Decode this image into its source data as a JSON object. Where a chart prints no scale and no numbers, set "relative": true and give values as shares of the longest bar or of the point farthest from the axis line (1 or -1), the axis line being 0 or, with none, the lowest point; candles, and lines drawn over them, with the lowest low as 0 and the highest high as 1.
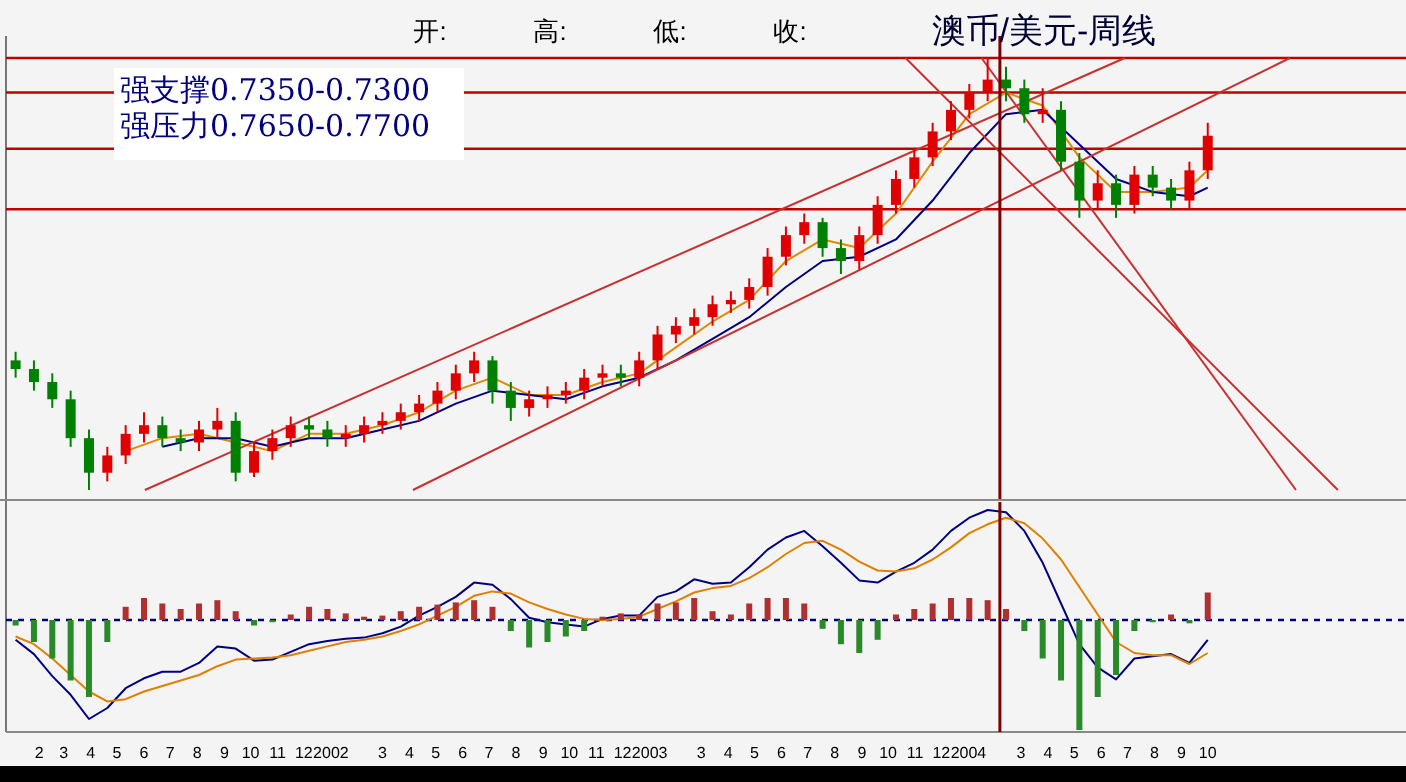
{
  "chart_data": [
    {
      "type": "candlestick",
      "title": "澳币/美元-周线",
      "relative": true,
      "annotations": [
        "开:",
        "高:",
        "低:",
        "收:",
        "强支撑0.7350-0.7300",
        "强压力0.7650-0.7700"
      ],
      "xlim": [
        "2000-12-25",
        "2005-05-16"
      ],
      "tick_labels": false,
      "x": [
        "2001-01-05",
        "2001-01-26",
        "2001-02-16",
        "2001-03-09",
        "2001-03-30",
        "2001-04-20",
        "2001-05-11",
        "2001-06-01",
        "2001-06-22",
        "2001-07-13",
        "2001-08-03",
        "2001-08-24",
        "2001-09-14",
        "2001-10-05",
        "2001-10-26",
        "2001-11-16",
        "2001-12-07",
        "2001-12-28",
        "2002-01-18",
        "2002-02-08",
        "2002-03-01",
        "2002-03-22",
        "2002-04-12",
        "2002-05-03",
        "2002-05-24",
        "2002-06-14",
        "2002-07-05",
        "2002-07-26",
        "2002-08-16",
        "2002-09-06",
        "2002-09-27",
        "2002-10-18",
        "2002-11-08",
        "2002-11-29",
        "2002-12-20",
        "2003-01-10",
        "2003-01-31",
        "2003-02-21",
        "2003-03-14",
        "2003-04-04",
        "2003-04-25",
        "2003-05-16",
        "2003-06-06",
        "2003-06-27",
        "2003-07-18",
        "2003-08-08",
        "2003-08-29",
        "2003-09-19",
        "2003-10-10",
        "2003-10-31",
        "2003-11-21",
        "2003-12-12",
        "2004-01-02",
        "2004-01-23",
        "2004-02-13",
        "2004-03-05",
        "2004-03-26",
        "2004-04-16",
        "2004-05-07",
        "2004-05-28",
        "2004-06-18",
        "2004-07-09",
        "2004-07-30",
        "2004-08-20",
        "2004-09-10",
        "2004-10-01"
      ],
      "ohlc": [
        [
          0.3,
          0.32,
          0.26,
          0.28
        ],
        [
          0.28,
          0.3,
          0.23,
          0.25
        ],
        [
          0.25,
          0.27,
          0.19,
          0.21
        ],
        [
          0.21,
          0.23,
          0.1,
          0.12
        ],
        [
          0.12,
          0.14,
          0,
          0.04
        ],
        [
          0.04,
          0.1,
          0.02,
          0.08
        ],
        [
          0.08,
          0.15,
          0.06,
          0.13
        ],
        [
          0.13,
          0.18,
          0.11,
          0.15
        ],
        [
          0.15,
          0.17,
          0.1,
          0.12
        ],
        [
          0.12,
          0.14,
          0.09,
          0.11
        ],
        [
          0.11,
          0.16,
          0.09,
          0.14
        ],
        [
          0.14,
          0.19,
          0.12,
          0.16
        ],
        [
          0.16,
          0.18,
          0.02,
          0.04
        ],
        [
          0.04,
          0.11,
          0.03,
          0.09
        ],
        [
          0.09,
          0.14,
          0.07,
          0.12
        ],
        [
          0.12,
          0.17,
          0.1,
          0.15
        ],
        [
          0.15,
          0.17,
          0.12,
          0.14
        ],
        [
          0.14,
          0.16,
          0.1,
          0.12
        ],
        [
          0.12,
          0.15,
          0.1,
          0.13
        ],
        [
          0.13,
          0.17,
          0.11,
          0.15
        ],
        [
          0.15,
          0.18,
          0.13,
          0.16
        ],
        [
          0.16,
          0.2,
          0.14,
          0.18
        ],
        [
          0.18,
          0.22,
          0.16,
          0.2
        ],
        [
          0.2,
          0.25,
          0.18,
          0.23
        ],
        [
          0.23,
          0.29,
          0.21,
          0.27
        ],
        [
          0.27,
          0.32,
          0.25,
          0.3
        ],
        [
          0.3,
          0.31,
          0.2,
          0.23
        ],
        [
          0.23,
          0.25,
          0.16,
          0.19
        ],
        [
          0.19,
          0.23,
          0.17,
          0.21
        ],
        [
          0.21,
          0.24,
          0.19,
          0.22
        ],
        [
          0.22,
          0.25,
          0.2,
          0.23
        ],
        [
          0.23,
          0.28,
          0.21,
          0.26
        ],
        [
          0.26,
          0.29,
          0.24,
          0.27
        ],
        [
          0.27,
          0.29,
          0.24,
          0.26
        ],
        [
          0.26,
          0.32,
          0.24,
          0.3
        ],
        [
          0.3,
          0.38,
          0.28,
          0.36
        ],
        [
          0.36,
          0.4,
          0.34,
          0.38
        ],
        [
          0.38,
          0.42,
          0.36,
          0.4
        ],
        [
          0.4,
          0.45,
          0.38,
          0.43
        ],
        [
          0.43,
          0.46,
          0.41,
          0.44
        ],
        [
          0.44,
          0.49,
          0.42,
          0.47
        ],
        [
          0.47,
          0.56,
          0.45,
          0.54
        ],
        [
          0.54,
          0.61,
          0.52,
          0.59
        ],
        [
          0.59,
          0.64,
          0.57,
          0.62
        ],
        [
          0.62,
          0.63,
          0.54,
          0.56
        ],
        [
          0.56,
          0.58,
          0.5,
          0.53
        ],
        [
          0.53,
          0.61,
          0.51,
          0.59
        ],
        [
          0.59,
          0.68,
          0.57,
          0.66
        ],
        [
          0.66,
          0.74,
          0.64,
          0.72
        ],
        [
          0.72,
          0.79,
          0.7,
          0.77
        ],
        [
          0.77,
          0.85,
          0.75,
          0.83
        ],
        [
          0.83,
          0.9,
          0.81,
          0.88
        ],
        [
          0.88,
          0.94,
          0.86,
          0.92
        ],
        [
          0.92,
          1.0,
          0.9,
          0.95
        ],
        [
          0.95,
          0.98,
          0.9,
          0.93
        ],
        [
          0.93,
          0.95,
          0.85,
          0.87
        ],
        [
          0.87,
          0.93,
          0.85,
          0.88
        ],
        [
          0.88,
          0.9,
          0.74,
          0.76
        ],
        [
          0.76,
          0.78,
          0.63,
          0.67
        ],
        [
          0.67,
          0.74,
          0.65,
          0.71
        ],
        [
          0.71,
          0.73,
          0.63,
          0.66
        ],
        [
          0.66,
          0.75,
          0.64,
          0.73
        ],
        [
          0.73,
          0.75,
          0.68,
          0.7
        ],
        [
          0.7,
          0.72,
          0.65,
          0.67
        ],
        [
          0.67,
          0.76,
          0.65,
          0.74
        ],
        [
          0.74,
          0.85,
          0.72,
          0.82
        ]
      ],
      "colors": [
        "#008000",
        "#008000",
        "#008000",
        "#008000",
        "#008000",
        "#e00000",
        "#e00000",
        "#e00000",
        "#008000",
        "#008000",
        "#e00000",
        "#e00000",
        "#008000",
        "#e00000",
        "#e00000",
        "#e00000",
        "#008000",
        "#008000",
        "#e00000",
        "#e00000",
        "#e00000",
        "#e00000",
        "#e00000",
        "#e00000",
        "#e00000",
        "#e00000",
        "#008000",
        "#008000",
        "#e00000",
        "#e00000",
        "#e00000",
        "#e00000",
        "#e00000",
        "#008000",
        "#e00000",
        "#e00000",
        "#e00000",
        "#e00000",
        "#e00000",
        "#e00000",
        "#e00000",
        "#e00000",
        "#e00000",
        "#e00000",
        "#008000",
        "#008000",
        "#e00000",
        "#e00000",
        "#e00000",
        "#e00000",
        "#e00000",
        "#e00000",
        "#e00000",
        "#e00000",
        "#008000",
        "#008000",
        "#e00000",
        "#008000",
        "#008000",
        "#e00000",
        "#008000",
        "#e00000",
        "#008000",
        "#008000",
        "#e00000",
        "#e00000"
      ],
      "series": [
        {
          "type": "line",
          "color": "#e08a00",
          "x": [
            "2001-05-11",
            "2001-06-22",
            "2001-08-03",
            "2001-09-14",
            "2001-10-26",
            "2001-12-07",
            "2002-01-18",
            "2002-03-01",
            "2002-04-12",
            "2002-05-24",
            "2002-07-05",
            "2002-08-16",
            "2002-09-27",
            "2002-11-08",
            "2002-12-20",
            "2003-01-31",
            "2003-03-14",
            "2003-04-25",
            "2003-06-06",
            "2003-07-18",
            "2003-08-29",
            "2003-10-10",
            "2003-11-21",
            "2004-01-02",
            "2004-02-13",
            "2004-03-26",
            "2004-05-07",
            "2004-06-18",
            "2004-07-30",
            "2004-09-10",
            "2004-10-01"
          ],
          "values": [
            0.09,
            0.12,
            0.13,
            0.11,
            0.09,
            0.13,
            0.13,
            0.15,
            0.18,
            0.23,
            0.26,
            0.22,
            0.22,
            0.25,
            0.27,
            0.33,
            0.39,
            0.44,
            0.53,
            0.58,
            0.56,
            0.64,
            0.76,
            0.87,
            0.92,
            0.89,
            0.77,
            0.69,
            0.69,
            0.7,
            0.74
          ]
        },
        {
          "type": "line",
          "color": "#000080",
          "x": [
            "2001-06-22",
            "2001-08-03",
            "2001-09-14",
            "2001-10-26",
            "2001-12-07",
            "2002-01-18",
            "2002-03-01",
            "2002-04-12",
            "2002-05-24",
            "2002-07-05",
            "2002-08-16",
            "2002-09-27",
            "2002-11-08",
            "2002-12-20",
            "2003-01-31",
            "2003-03-14",
            "2003-04-25",
            "2003-06-06",
            "2003-07-18",
            "2003-08-29",
            "2003-10-10",
            "2003-11-21",
            "2004-01-02",
            "2004-02-13",
            "2004-03-26",
            "2004-05-07",
            "2004-06-18",
            "2004-07-30",
            "2004-09-10",
            "2004-10-01"
          ],
          "values": [
            0.1,
            0.12,
            0.12,
            0.1,
            0.12,
            0.12,
            0.14,
            0.16,
            0.2,
            0.23,
            0.22,
            0.21,
            0.24,
            0.26,
            0.3,
            0.35,
            0.4,
            0.47,
            0.53,
            0.54,
            0.58,
            0.67,
            0.78,
            0.87,
            0.88,
            0.8,
            0.72,
            0.69,
            0.68,
            0.7
          ]
        },
        {
          "type": "line",
          "color": "#c83030",
          "x": [
            "2001-06-02",
            "2004-06-28"
          ],
          "values": [
            0,
            1
          ]
        },
        {
          "type": "line",
          "color": "#c83030",
          "x": [
            "2002-04-05",
            "2005-01-03"
          ],
          "values": [
            0,
            1
          ]
        },
        {
          "type": "line",
          "color": "#c83030",
          "x": [
            "2003-10-21",
            "2005-02-27"
          ],
          "values": [
            1,
            0
          ]
        },
        {
          "type": "line",
          "color": "#c83030",
          "x": [
            "2004-01-16",
            "2005-01-10"
          ],
          "values": [
            1,
            0
          ]
        }
      ],
      "ref_lines": [
        {
          "axis": "y",
          "value": 1.0,
          "color": "#c00000"
        },
        {
          "axis": "y",
          "value": 0.92,
          "color": "#c00000"
        },
        {
          "axis": "y",
          "value": 0.79,
          "color": "#c00000"
        },
        {
          "axis": "y",
          "value": 0.65,
          "color": "#c00000"
        },
        {
          "axis": "x",
          "value": "2004-02-06",
          "color": "#800000"
        }
      ]
    },
    {
      "type": "bar",
      "relative": true,
      "xlim": [
        "2000-12-25",
        "2005-05-16"
      ],
      "tick_labels": "x",
      "x": [
        "2001-01-05",
        "2001-01-26",
        "2001-02-16",
        "2001-03-09",
        "2001-03-30",
        "2001-04-20",
        "2001-05-11",
        "2001-06-01",
        "2001-06-22",
        "2001-07-13",
        "2001-08-03",
        "2001-08-24",
        "2001-09-14",
        "2001-10-05",
        "2001-10-26",
        "2001-11-16",
        "2001-12-07",
        "2001-12-28",
        "2002-01-18",
        "2002-02-08",
        "2002-03-01",
        "2002-03-22",
        "2002-04-12",
        "2002-05-03",
        "2002-05-24",
        "2002-06-14",
        "2002-07-05",
        "2002-07-26",
        "2002-08-16",
        "2002-09-06",
        "2002-09-27",
        "2002-10-18",
        "2002-11-08",
        "2002-11-29",
        "2002-12-20",
        "2003-01-10",
        "2003-01-31",
        "2003-02-21",
        "2003-03-14",
        "2003-04-04",
        "2003-04-25",
        "2003-05-16",
        "2003-06-06",
        "2003-06-27",
        "2003-07-18",
        "2003-08-08",
        "2003-08-29",
        "2003-09-19",
        "2003-10-10",
        "2003-10-31",
        "2003-11-21",
        "2003-12-12",
        "2004-01-02",
        "2004-01-23",
        "2004-02-13",
        "2004-03-05",
        "2004-03-26",
        "2004-04-16",
        "2004-05-07",
        "2004-05-28",
        "2004-06-18",
        "2004-07-09",
        "2004-07-30",
        "2004-08-20",
        "2004-09-10",
        "2004-10-01"
      ],
      "series": [
        {
          "type": "bar",
          "values": [
            -0.05,
            -0.2,
            -0.35,
            -0.55,
            -0.7,
            -0.2,
            0.12,
            0.2,
            0.15,
            0.1,
            0.15,
            0.18,
            0.08,
            -0.05,
            -0.02,
            0.05,
            0.12,
            0.1,
            0.06,
            0.03,
            0.04,
            0.08,
            0.12,
            0.14,
            0.16,
            0.18,
            0.12,
            -0.1,
            -0.25,
            -0.2,
            -0.15,
            -0.1,
            0.03,
            0.06,
            0.05,
            0.15,
            0.16,
            0.2,
            0.08,
            0.05,
            0.15,
            0.2,
            0.2,
            0.15,
            -0.08,
            -0.22,
            -0.3,
            -0.18,
            0.05,
            0.1,
            0.15,
            0.2,
            0.2,
            0.18,
            0.1,
            -0.1,
            -0.35,
            -0.55,
            -1.0,
            -0.7,
            -0.5,
            -0.1,
            -0.02,
            0.05,
            -0.03,
            0.25
          ],
          "colors": [
            "#2a8a2a",
            "#2a8a2a",
            "#2a8a2a",
            "#2a8a2a",
            "#2a8a2a",
            "#2a8a2a",
            "#b03030",
            "#b03030",
            "#b03030",
            "#b03030",
            "#b03030",
            "#b03030",
            "#b03030",
            "#2a8a2a",
            "#2a8a2a",
            "#b03030",
            "#b03030",
            "#b03030",
            "#b03030",
            "#b03030",
            "#b03030",
            "#b03030",
            "#b03030",
            "#b03030",
            "#b03030",
            "#b03030",
            "#b03030",
            "#2a8a2a",
            "#2a8a2a",
            "#2a8a2a",
            "#2a8a2a",
            "#2a8a2a",
            "#b03030",
            "#b03030",
            "#b03030",
            "#b03030",
            "#b03030",
            "#b03030",
            "#b03030",
            "#b03030",
            "#b03030",
            "#b03030",
            "#b03030",
            "#b03030",
            "#2a8a2a",
            "#2a8a2a",
            "#2a8a2a",
            "#2a8a2a",
            "#b03030",
            "#b03030",
            "#b03030",
            "#b03030",
            "#b03030",
            "#b03030",
            "#b03030",
            "#2a8a2a",
            "#2a8a2a",
            "#2a8a2a",
            "#2a8a2a",
            "#2a8a2a",
            "#2a8a2a",
            "#2a8a2a",
            "#2a8a2a",
            "#b03030",
            "#2a8a2a",
            "#b03030"
          ]
        },
        {
          "type": "line",
          "color": "#000080",
          "values": [
            -0.18,
            -0.31,
            -0.51,
            -0.68,
            -0.9,
            -0.8,
            -0.62,
            -0.53,
            -0.47,
            -0.47,
            -0.39,
            -0.24,
            -0.26,
            -0.37,
            -0.36,
            -0.29,
            -0.22,
            -0.19,
            -0.17,
            -0.16,
            -0.12,
            -0.06,
            0.04,
            0.12,
            0.21,
            0.34,
            0.32,
            0.19,
            0.02,
            -0.02,
            -0.04,
            -0.06,
            0.01,
            0.04,
            0.04,
            0.21,
            0.26,
            0.37,
            0.33,
            0.34,
            0.48,
            0.64,
            0.75,
            0.81,
            0.67,
            0.52,
            0.36,
            0.34,
            0.44,
            0.52,
            0.64,
            0.81,
            0.93,
            1.0,
            0.98,
            0.81,
            0.52,
            0.15,
            -0.22,
            -0.43,
            -0.54,
            -0.35,
            -0.33,
            -0.31,
            -0.39,
            -0.18
          ]
        },
        {
          "type": "line",
          "color": "#e08000",
          "values": [
            -0.15,
            -0.22,
            -0.35,
            -0.5,
            -0.65,
            -0.74,
            -0.72,
            -0.65,
            -0.6,
            -0.55,
            -0.5,
            -0.42,
            -0.36,
            -0.35,
            -0.34,
            -0.32,
            -0.28,
            -0.24,
            -0.2,
            -0.18,
            -0.15,
            -0.1,
            -0.04,
            0.04,
            0.12,
            0.22,
            0.26,
            0.24,
            0.16,
            0.1,
            0.05,
            0.01,
            0,
            0.01,
            0.03,
            0.1,
            0.17,
            0.25,
            0.29,
            0.31,
            0.38,
            0.48,
            0.6,
            0.7,
            0.72,
            0.64,
            0.53,
            0.45,
            0.44,
            0.47,
            0.55,
            0.66,
            0.79,
            0.87,
            0.93,
            0.88,
            0.74,
            0.55,
            0.3,
            0.05,
            -0.2,
            -0.3,
            -0.32,
            -0.32,
            -0.4,
            -0.3
          ]
        }
      ],
      "ref_lines": [
        {
          "axis": "y",
          "value": 0,
          "color": "#000080",
          "line_style": "dashed"
        },
        {
          "axis": "x",
          "value": "2004-02-06",
          "color": "#800000"
        }
      ],
      "xticks": [
        {
          "value": "2001-02-01",
          "label": "2"
        },
        {
          "value": "2001-03-01",
          "label": "3"
        },
        {
          "value": "2001-04-01",
          "label": "4"
        },
        {
          "value": "2001-05-01",
          "label": "5"
        },
        {
          "value": "2001-06-01",
          "label": "6"
        },
        {
          "value": "2001-07-01",
          "label": "7"
        },
        {
          "value": "2001-08-01",
          "label": "8"
        },
        {
          "value": "2001-09-01",
          "label": "9"
        },
        {
          "value": "2001-10-01",
          "label": "10"
        },
        {
          "value": "2001-11-01",
          "label": "11"
        },
        {
          "value": "2001-12-01",
          "label": "12"
        },
        {
          "value": "2002-01-01",
          "label": "2002"
        },
        {
          "value": "2002-03-01",
          "label": "3"
        },
        {
          "value": "2002-04-01",
          "label": "4"
        },
        {
          "value": "2002-05-01",
          "label": "5"
        },
        {
          "value": "2002-06-01",
          "label": "6"
        },
        {
          "value": "2002-07-01",
          "label": "7"
        },
        {
          "value": "2002-08-01",
          "label": "8"
        },
        {
          "value": "2002-09-01",
          "label": "9"
        },
        {
          "value": "2002-10-01",
          "label": "10"
        },
        {
          "value": "2002-11-01",
          "label": "11"
        },
        {
          "value": "2002-12-01",
          "label": "12"
        },
        {
          "value": "2003-01-01",
          "label": "2003"
        },
        {
          "value": "2003-03-01",
          "label": "3"
        },
        {
          "value": "2003-04-01",
          "label": "4"
        },
        {
          "value": "2003-05-01",
          "label": "5"
        },
        {
          "value": "2003-06-01",
          "label": "6"
        },
        {
          "value": "2003-07-01",
          "label": "7"
        },
        {
          "value": "2003-08-01",
          "label": "8"
        },
        {
          "value": "2003-09-01",
          "label": "9"
        },
        {
          "value": "2003-10-01",
          "label": "10"
        },
        {
          "value": "2003-11-01",
          "label": "11"
        },
        {
          "value": "2003-12-01",
          "label": "12"
        },
        {
          "value": "2004-01-01",
          "label": "2004"
        },
        {
          "value": "2004-03-01",
          "label": "3"
        },
        {
          "value": "2004-04-01",
          "label": "4"
        },
        {
          "value": "2004-05-01",
          "label": "5"
        },
        {
          "value": "2004-06-01",
          "label": "6"
        },
        {
          "value": "2004-07-01",
          "label": "7"
        },
        {
          "value": "2004-08-01",
          "label": "8"
        },
        {
          "value": "2004-09-01",
          "label": "9"
        },
        {
          "value": "2004-10-01",
          "label": "10"
        }
      ]
    }
  ]
}
